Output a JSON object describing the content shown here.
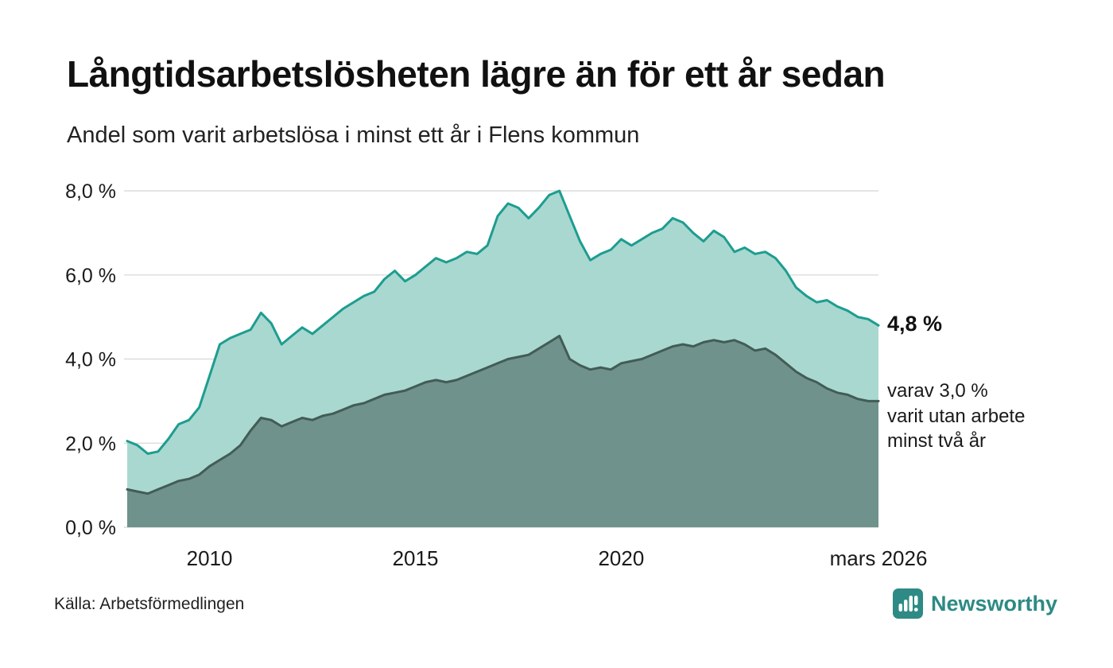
{
  "header": {
    "title": "Långtidsarbetslösheten lägre än för ett år sedan",
    "subtitle": "Andel som varit arbetslösa i minst ett år i Flens kommun"
  },
  "annotations": {
    "end_value": "4,8 %",
    "secondary": "varav 3,0 %\nvarit utan arbete\nminst två år"
  },
  "footer": {
    "source": "Källa: Arbetsförmedlingen",
    "brand": "Newsworthy"
  },
  "colors": {
    "brand": "#2d8a84",
    "grid": "#dcdcdc",
    "text": "#1a1a1a",
    "series1_line": "#1d9d8f",
    "series1_fill": "#a9d8d1",
    "series2_line": "#435c56",
    "series2_fill": "#6f928c"
  },
  "chart_data": {
    "type": "area",
    "title": "Andel som varit arbetslösa i minst ett år i Flens kommun",
    "xlabel": "",
    "ylabel": "",
    "xlim": [
      2008.0,
      2026.25
    ],
    "ylim": [
      0,
      8
    ],
    "grid": true,
    "legend": "none",
    "x_ticks": {
      "values": [
        2010,
        2015,
        2020,
        2026.25
      ],
      "labels": [
        "2010",
        "2015",
        "2020",
        "mars 2026"
      ]
    },
    "y_ticks": {
      "values": [
        0,
        2,
        4,
        6,
        8
      ],
      "labels": [
        "0,0 %",
        "2,0 %",
        "4,0 %",
        "6,0 %",
        "8,0 %"
      ]
    },
    "x": [
      2008.0,
      2008.25,
      2008.5,
      2008.75,
      2009.0,
      2009.25,
      2009.5,
      2009.75,
      2010.0,
      2010.25,
      2010.5,
      2010.75,
      2011.0,
      2011.25,
      2011.5,
      2011.75,
      2012.0,
      2012.25,
      2012.5,
      2012.75,
      2013.0,
      2013.25,
      2013.5,
      2013.75,
      2014.0,
      2014.25,
      2014.5,
      2014.75,
      2015.0,
      2015.25,
      2015.5,
      2015.75,
      2016.0,
      2016.25,
      2016.5,
      2016.75,
      2017.0,
      2017.25,
      2017.5,
      2017.75,
      2018.0,
      2018.25,
      2018.5,
      2018.75,
      2019.0,
      2019.25,
      2019.5,
      2019.75,
      2020.0,
      2020.25,
      2020.5,
      2020.75,
      2021.0,
      2021.25,
      2021.5,
      2021.75,
      2022.0,
      2022.25,
      2022.5,
      2022.75,
      2023.0,
      2023.25,
      2023.5,
      2023.75,
      2024.0,
      2024.25,
      2024.5,
      2024.75,
      2025.0,
      2025.25,
      2025.5,
      2025.75,
      2026.0,
      2026.25
    ],
    "series": [
      {
        "name": "Arbetslösa minst ett år",
        "end_label": "4,8 %",
        "line_color": "#1d9d8f",
        "fill_color": "#a9d8d1",
        "values": [
          2.05,
          1.95,
          1.75,
          1.8,
          2.1,
          2.45,
          2.55,
          2.85,
          3.6,
          4.35,
          4.5,
          4.6,
          4.7,
          5.1,
          4.85,
          4.35,
          4.55,
          4.75,
          4.6,
          4.8,
          5.0,
          5.2,
          5.35,
          5.5,
          5.6,
          5.9,
          6.1,
          5.85,
          6.0,
          6.2,
          6.4,
          6.3,
          6.4,
          6.55,
          6.5,
          6.7,
          7.4,
          7.7,
          7.6,
          7.35,
          7.6,
          7.9,
          8.0,
          7.4,
          6.8,
          6.35,
          6.5,
          6.6,
          6.85,
          6.7,
          6.85,
          7.0,
          7.1,
          7.35,
          7.25,
          7.0,
          6.8,
          7.05,
          6.9,
          6.55,
          6.65,
          6.5,
          6.55,
          6.4,
          6.1,
          5.7,
          5.5,
          5.35,
          5.4,
          5.25,
          5.15,
          5.0,
          4.95,
          4.8
        ]
      },
      {
        "name": "Utan arbete minst två år",
        "end_label": "3,0 %",
        "line_color": "#435c56",
        "fill_color": "#6f928c",
        "values": [
          0.9,
          0.85,
          0.8,
          0.9,
          1.0,
          1.1,
          1.15,
          1.25,
          1.45,
          1.6,
          1.75,
          1.95,
          2.3,
          2.6,
          2.55,
          2.4,
          2.5,
          2.6,
          2.55,
          2.65,
          2.7,
          2.8,
          2.9,
          2.95,
          3.05,
          3.15,
          3.2,
          3.25,
          3.35,
          3.45,
          3.5,
          3.45,
          3.5,
          3.6,
          3.7,
          3.8,
          3.9,
          4.0,
          4.05,
          4.1,
          4.25,
          4.4,
          4.55,
          4.0,
          3.85,
          3.75,
          3.8,
          3.75,
          3.9,
          3.95,
          4.0,
          4.1,
          4.2,
          4.3,
          4.35,
          4.3,
          4.4,
          4.45,
          4.4,
          4.45,
          4.35,
          4.2,
          4.25,
          4.1,
          3.9,
          3.7,
          3.55,
          3.45,
          3.3,
          3.2,
          3.15,
          3.05,
          3.0,
          3.0
        ]
      }
    ]
  }
}
